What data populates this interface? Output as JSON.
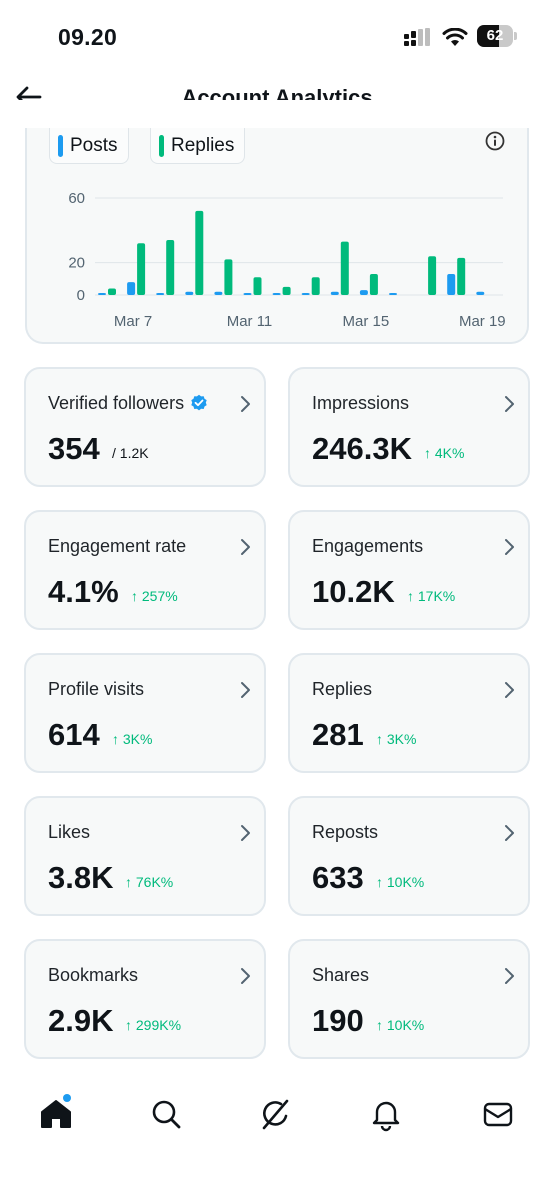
{
  "status_bar": {
    "time": "09.20",
    "battery": "62",
    "battery_level": 0.62
  },
  "header": {
    "title": "Account Analytics",
    "back_icon": "back-arrow-icon"
  },
  "chart_legend": [
    {
      "label": "Posts",
      "color": "#1d9bf0"
    },
    {
      "label": "Replies",
      "color": "#00ba7c"
    }
  ],
  "chart_data": {
    "type": "bar",
    "categories": [
      "Mar 6",
      "Mar 7",
      "Mar 8",
      "Mar 9",
      "Mar 10",
      "Mar 11",
      "Mar 12",
      "Mar 13",
      "Mar 14",
      "Mar 15",
      "Mar 16",
      "Mar 17",
      "Mar 18",
      "Mar 19",
      "Mar 20"
    ],
    "x_tick_labels": [
      "Mar 7",
      "Mar 11",
      "Mar 15",
      "Mar 19"
    ],
    "y_tick_labels": [
      "60",
      "20",
      "0"
    ],
    "y_ticks": [
      60,
      20,
      0
    ],
    "ylim": [
      0,
      60
    ],
    "series": [
      {
        "name": "Posts",
        "color": "#1d9bf0",
        "values": [
          1,
          8,
          1,
          2,
          2,
          1,
          1,
          1,
          2,
          3,
          1,
          0,
          13,
          2,
          0
        ]
      },
      {
        "name": "Replies",
        "color": "#00ba7c",
        "values": [
          4,
          32,
          34,
          52,
          22,
          11,
          5,
          11,
          33,
          13,
          0,
          24,
          23,
          0,
          0
        ]
      }
    ]
  },
  "cards": [
    {
      "label": "Verified followers",
      "value": "354",
      "total": "/ 1.2K",
      "verified": true
    },
    {
      "label": "Impressions",
      "value": "246.3K",
      "delta": "↑ 4K%"
    },
    {
      "label": "Engagement rate",
      "value": "4.1%",
      "delta": "↑ 257%"
    },
    {
      "label": "Engagements",
      "value": "10.2K",
      "delta": "↑ 17K%"
    },
    {
      "label": "Profile visits",
      "value": "614",
      "delta": "↑ 3K%"
    },
    {
      "label": "Replies",
      "value": "281",
      "delta": "↑ 3K%"
    },
    {
      "label": "Likes",
      "value": "3.8K",
      "delta": "↑ 76K%"
    },
    {
      "label": "Reposts",
      "value": "633",
      "delta": "↑ 10K%"
    },
    {
      "label": "Bookmarks",
      "value": "2.9K",
      "delta": "↑ 299K%"
    },
    {
      "label": "Shares",
      "value": "190",
      "delta": "↑ 10K%"
    }
  ],
  "tabbar": {
    "items": [
      "home-icon",
      "search-icon",
      "grok-icon",
      "notifications-icon",
      "messages-icon"
    ],
    "home_badge": true
  }
}
